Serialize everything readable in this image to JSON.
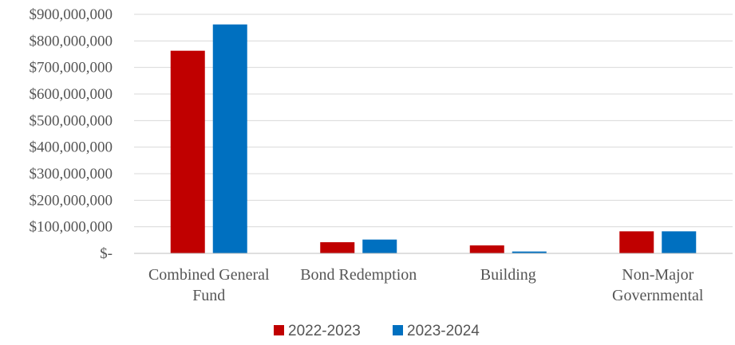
{
  "chart_data": {
    "type": "bar",
    "title": "",
    "xlabel": "",
    "ylabel": "",
    "categories": [
      [
        "Combined General",
        "Fund"
      ],
      [
        "Bond Redemption"
      ],
      [
        "Building"
      ],
      [
        "Non-Major",
        "Governmental"
      ]
    ],
    "series": [
      {
        "name": "2022-2023",
        "color": "#c00000",
        "values": [
          763000000,
          42000000,
          30000000,
          83000000
        ]
      },
      {
        "name": "2023-2024",
        "color": "#0070c0",
        "values": [
          862000000,
          52000000,
          7000000,
          83000000
        ]
      }
    ],
    "ylim": [
      0,
      900000000
    ],
    "y_ticks": [
      0,
      100000000,
      200000000,
      300000000,
      400000000,
      500000000,
      600000000,
      700000000,
      800000000,
      900000000
    ],
    "y_tick_labels": [
      "$-",
      "$100,000,000",
      "$200,000,000",
      "$300,000,000",
      "$400,000,000",
      "$500,000,000",
      "$600,000,000",
      "$700,000,000",
      "$800,000,000",
      "$900,000,000"
    ],
    "grid": true,
    "legend": "bottom"
  }
}
